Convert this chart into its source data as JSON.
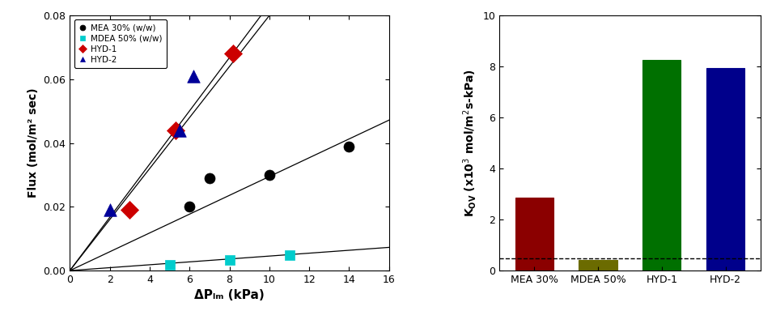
{
  "left_scatter": {
    "MEA": {
      "x": [
        6,
        7,
        10,
        14
      ],
      "y": [
        0.02,
        0.029,
        0.03,
        0.039
      ],
      "color": "#000000",
      "marker": "o",
      "label": "MEA 30% (w/w)",
      "slope": 0.00295,
      "mfc": "#000000"
    },
    "MDEA": {
      "x": [
        5,
        8,
        11
      ],
      "y": [
        0.0017,
        0.0033,
        0.0048
      ],
      "color": "#00CCCC",
      "marker": "s",
      "label": "MDEA 50% (w/w)",
      "slope": 0.000455,
      "mfc": "#00CCCC"
    },
    "HYD1": {
      "x": [
        3,
        5.3,
        8.2
      ],
      "y": [
        0.019,
        0.044,
        0.068
      ],
      "color": "#CC0000",
      "marker": "D",
      "label": "HYD-1",
      "slope": 0.00835,
      "mfc": "#CC0000"
    },
    "HYD2": {
      "x": [
        2,
        5.5,
        6.2
      ],
      "y": [
        0.019,
        0.044,
        0.061
      ],
      "color": "#000099",
      "marker": "^",
      "label": "HYD-2",
      "slope": 0.008,
      "mfc": "#000099"
    }
  },
  "left_axis": {
    "xlabel": "ΔPₗₘ (kPa)",
    "ylabel": "Flux (mol/m² sec)",
    "xlim": [
      0,
      16
    ],
    "ylim": [
      0,
      0.08
    ],
    "xticks": [
      0,
      2,
      4,
      6,
      8,
      10,
      12,
      14,
      16
    ],
    "yticks": [
      0.0,
      0.02,
      0.04,
      0.06,
      0.08
    ]
  },
  "right_bar": {
    "categories": [
      "MEA 30%",
      "MDEA 50%",
      "HYD-1",
      "HYD-2"
    ],
    "values": [
      2.85,
      0.42,
      8.25,
      7.95
    ],
    "colors": [
      "#8B0000",
      "#6B6B00",
      "#007000",
      "#00008B"
    ],
    "edge_colors": [
      "#8B0000",
      "#6B6B00",
      "#007000",
      "#00008B"
    ],
    "dashed_line_y": 0.48,
    "bar_width": 0.6
  },
  "right_axis": {
    "ylim": [
      0,
      10
    ],
    "yticks": [
      0,
      2,
      4,
      6,
      8,
      10
    ]
  }
}
